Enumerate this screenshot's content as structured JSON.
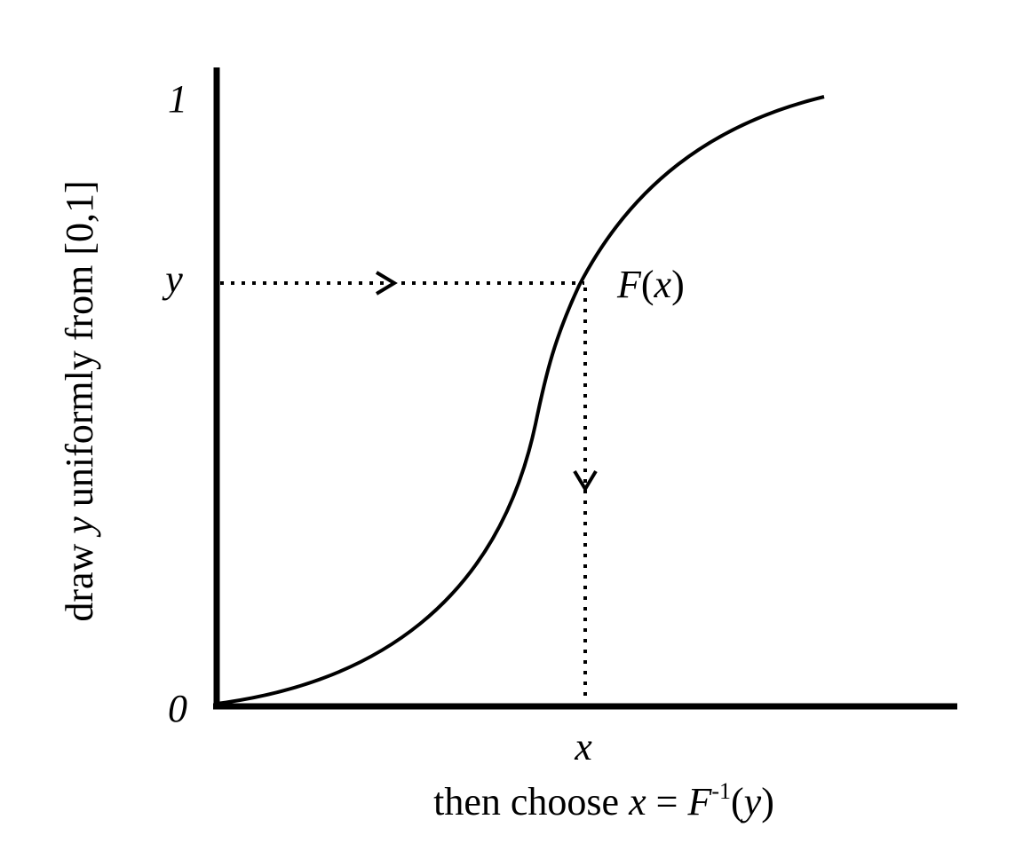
{
  "figure": {
    "axis_top_label": "1",
    "axis_bottom_label": "0",
    "y_marker_label": "y",
    "x_marker_label": "x",
    "curve_label": {
      "func": "F",
      "open": "(",
      "arg": "x",
      "close": ")"
    },
    "y_axis_caption": {
      "before": "draw ",
      "var": "y",
      "after": " uniformly from [0,1]"
    },
    "x_axis_caption": {
      "before": "then choose ",
      "var": "x",
      "eq": " = ",
      "func": "F",
      "sup": "-1",
      "open": "(",
      "arg": "y",
      "close": ")"
    },
    "colors": {
      "ink": "#000000",
      "background": "#ffffff"
    }
  }
}
